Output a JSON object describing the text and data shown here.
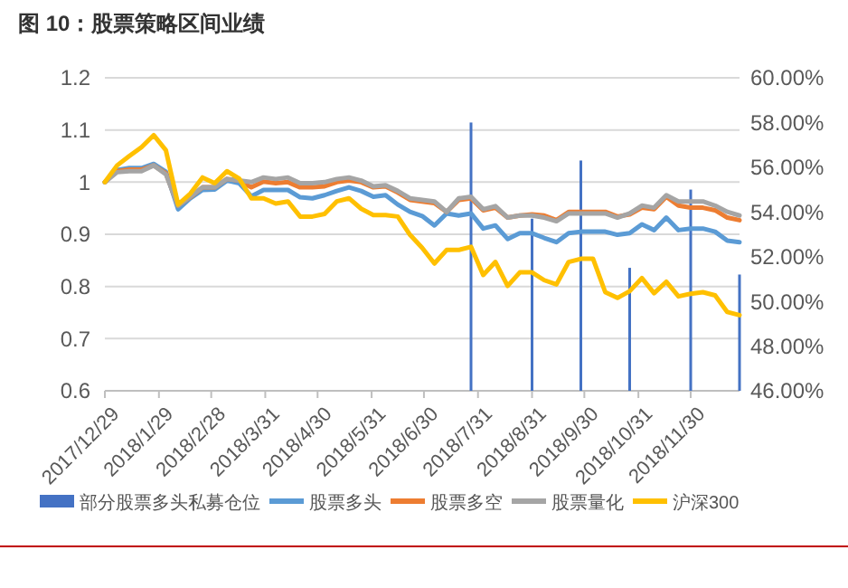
{
  "chart_data": {
    "type": "line",
    "title": "图 10：股票策略区间业绩",
    "x": [
      "2017-12-29",
      "2018-01-05",
      "2018-01-12",
      "2018-01-19",
      "2018-01-26",
      "2018-02-02",
      "2018-02-09",
      "2018-02-16",
      "2018-02-23",
      "2018-03-02",
      "2018-03-09",
      "2018-03-16",
      "2018-03-23",
      "2018-03-30",
      "2018-04-06",
      "2018-04-13",
      "2018-04-20",
      "2018-04-27",
      "2018-05-04",
      "2018-05-11",
      "2018-05-18",
      "2018-05-25",
      "2018-06-01",
      "2018-06-08",
      "2018-06-15",
      "2018-06-22",
      "2018-06-29",
      "2018-07-06",
      "2018-07-13",
      "2018-07-20",
      "2018-07-27",
      "2018-08-03",
      "2018-08-10",
      "2018-08-17",
      "2018-08-24",
      "2018-08-31",
      "2018-09-07",
      "2018-09-14",
      "2018-09-21",
      "2018-09-28",
      "2018-10-05",
      "2018-10-12",
      "2018-10-19",
      "2018-10-26",
      "2018-11-02",
      "2018-11-09",
      "2018-11-16",
      "2018-11-23",
      "2018-11-30",
      "2018-12-07",
      "2018-12-14",
      "2018-12-21",
      "2018-12-28"
    ],
    "series": [
      {
        "name": "部分股票多头私募仓位",
        "type": "bar",
        "axis": "y2",
        "color": "#4472c4",
        "x": [
          "2018-07-27",
          "2018-08-31",
          "2018-09-28",
          "2018-10-26",
          "2018-11-30",
          "2018-12-28"
        ],
        "values": [
          58.0,
          53.7,
          56.3,
          51.5,
          55.0,
          51.2
        ]
      },
      {
        "name": "股票多头",
        "color": "#5b9bd5",
        "values": [
          1.0,
          1.023,
          1.027,
          1.027,
          1.035,
          1.02,
          0.948,
          0.969,
          0.985,
          0.986,
          1.003,
          0.998,
          0.973,
          0.985,
          0.985,
          0.985,
          0.971,
          0.969,
          0.975,
          0.983,
          0.99,
          0.983,
          0.972,
          0.975,
          0.957,
          0.943,
          0.935,
          0.917,
          0.94,
          0.936,
          0.94,
          0.911,
          0.917,
          0.891,
          0.902,
          0.902,
          0.893,
          0.885,
          0.902,
          0.905,
          0.905,
          0.905,
          0.899,
          0.902,
          0.919,
          0.908,
          0.932,
          0.908,
          0.911,
          0.911,
          0.905,
          0.888,
          0.885
        ]
      },
      {
        "name": "股票多空",
        "color": "#ed7d31",
        "values": [
          1.0,
          1.021,
          1.024,
          1.024,
          1.032,
          1.017,
          0.955,
          0.971,
          0.99,
          0.99,
          1.006,
          1.003,
          0.99,
          1.001,
          0.998,
          1.0,
          0.99,
          0.99,
          0.992,
          1.0,
          1.003,
          1.0,
          0.99,
          0.992,
          0.98,
          0.966,
          0.963,
          0.96,
          0.943,
          0.966,
          0.969,
          0.946,
          0.951,
          0.932,
          0.936,
          0.938,
          0.936,
          0.927,
          0.943,
          0.943,
          0.943,
          0.943,
          0.934,
          0.938,
          0.951,
          0.948,
          0.972,
          0.955,
          0.951,
          0.951,
          0.946,
          0.932,
          0.927
        ]
      },
      {
        "name": "股票量化",
        "color": "#a5a5a5",
        "values": [
          1.0,
          1.019,
          1.021,
          1.021,
          1.032,
          1.015,
          0.955,
          0.972,
          0.99,
          0.99,
          1.006,
          1.003,
          1.0,
          1.009,
          1.006,
          1.009,
          0.998,
          0.998,
          1.0,
          1.006,
          1.009,
          1.003,
          0.992,
          0.994,
          0.983,
          0.969,
          0.966,
          0.963,
          0.943,
          0.969,
          0.972,
          0.948,
          0.954,
          0.932,
          0.936,
          0.936,
          0.932,
          0.925,
          0.94,
          0.94,
          0.94,
          0.94,
          0.932,
          0.94,
          0.955,
          0.951,
          0.975,
          0.963,
          0.963,
          0.963,
          0.955,
          0.943,
          0.936
        ]
      },
      {
        "name": "沪深300",
        "color": "#ffc000",
        "values": [
          1.0,
          1.032,
          1.05,
          1.067,
          1.09,
          1.061,
          0.957,
          0.978,
          1.009,
          0.998,
          1.021,
          1.007,
          0.969,
          0.969,
          0.959,
          0.963,
          0.934,
          0.934,
          0.939,
          0.963,
          0.969,
          0.949,
          0.937,
          0.937,
          0.934,
          0.899,
          0.874,
          0.844,
          0.87,
          0.87,
          0.876,
          0.822,
          0.847,
          0.801,
          0.827,
          0.827,
          0.812,
          0.804,
          0.847,
          0.853,
          0.853,
          0.789,
          0.778,
          0.791,
          0.816,
          0.787,
          0.809,
          0.781,
          0.786,
          0.789,
          0.783,
          0.751,
          0.745
        ]
      }
    ],
    "xlim": [
      "2017-12-29",
      "2018-12-28"
    ],
    "xticks": [
      {
        "value": "2017-12-29",
        "label": "2017/12/29"
      },
      {
        "value": "2018-01-29",
        "label": "2018/1/29"
      },
      {
        "value": "2018-02-28",
        "label": "2018/2/28"
      },
      {
        "value": "2018-03-31",
        "label": "2018/3/31"
      },
      {
        "value": "2018-04-30",
        "label": "2018/4/30"
      },
      {
        "value": "2018-05-31",
        "label": "2018/5/31"
      },
      {
        "value": "2018-06-30",
        "label": "2018/6/30"
      },
      {
        "value": "2018-07-31",
        "label": "2018/7/31"
      },
      {
        "value": "2018-08-31",
        "label": "2018/8/31"
      },
      {
        "value": "2018-09-30",
        "label": "2018/9/30"
      },
      {
        "value": "2018-10-31",
        "label": "2018/10/31"
      },
      {
        "value": "2018-11-30",
        "label": "2018/11/30"
      }
    ],
    "ylim": [
      0.6,
      1.2
    ],
    "yticks": [
      0.6,
      0.7,
      0.8,
      0.9,
      1,
      1.1,
      1.2
    ],
    "y2lim": [
      46,
      60
    ],
    "y2ticks": [
      {
        "value": 46,
        "label": "46.00%"
      },
      {
        "value": 48,
        "label": "48.00%"
      },
      {
        "value": 50,
        "label": "50.00%"
      },
      {
        "value": 52,
        "label": "52.00%"
      },
      {
        "value": 54,
        "label": "54.00%"
      },
      {
        "value": 56,
        "label": "56.00%"
      },
      {
        "value": 58,
        "label": "58.00%"
      },
      {
        "value": 60,
        "label": "60.00%"
      }
    ],
    "grid": "y",
    "legend": "bottom",
    "marker": "none",
    "line_style": "solid"
  }
}
